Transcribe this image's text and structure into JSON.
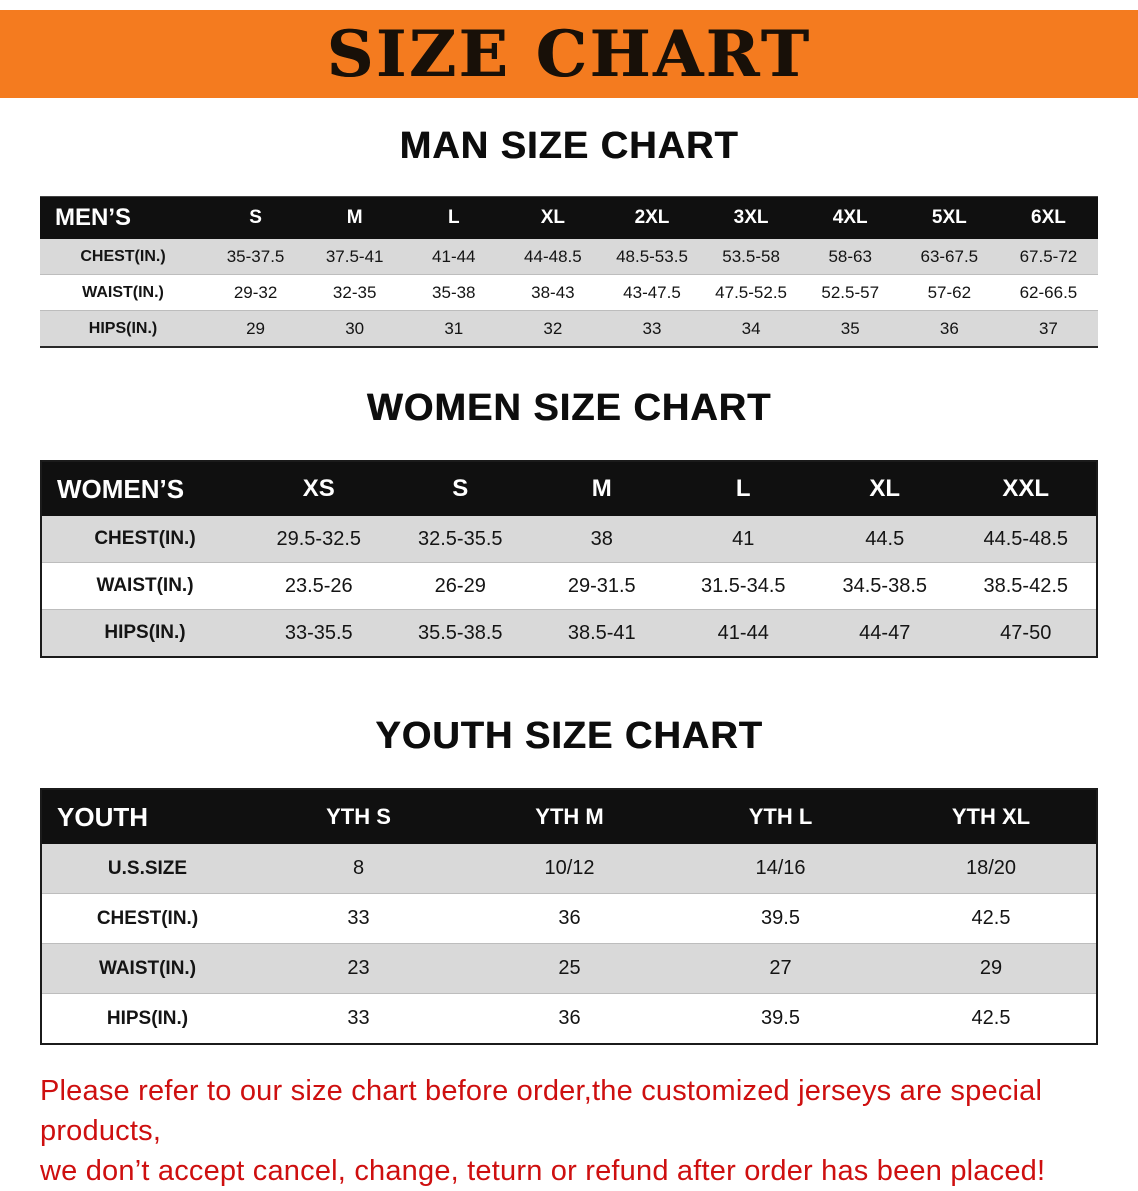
{
  "banner": {
    "title": "SIZE CHART",
    "bg_color": "#F47B1F",
    "text_color": "#181008"
  },
  "sections": {
    "men": {
      "heading": "MAN SIZE CHART",
      "table": {
        "header": [
          "MEN’S",
          "S",
          "M",
          "L",
          "XL",
          "2XL",
          "3XL",
          "4XL",
          "5XL",
          "6XL"
        ],
        "rows": [
          [
            "CHEST(IN.)",
            "35-37.5",
            "37.5-41",
            "41-44",
            "44-48.5",
            "48.5-53.5",
            "53.5-58",
            "58-63",
            "63-67.5",
            "67.5-72"
          ],
          [
            "WAIST(IN.)",
            "29-32",
            "32-35",
            "35-38",
            "38-43",
            "43-47.5",
            "47.5-52.5",
            "52.5-57",
            "57-62",
            "62-66.5"
          ],
          [
            "HIPS(IN.)",
            "29",
            "30",
            "31",
            "32",
            "33",
            "34",
            "35",
            "36",
            "37"
          ]
        ]
      }
    },
    "women": {
      "heading": "WOMEN SIZE CHART",
      "table": {
        "header": [
          "WOMEN’S",
          "XS",
          "S",
          "M",
          "L",
          "XL",
          "XXL"
        ],
        "rows": [
          [
            "CHEST(IN.)",
            "29.5-32.5",
            "32.5-35.5",
            "38",
            "41",
            "44.5",
            "44.5-48.5"
          ],
          [
            "WAIST(IN.)",
            "23.5-26",
            "26-29",
            "29-31.5",
            "31.5-34.5",
            "34.5-38.5",
            "38.5-42.5"
          ],
          [
            "HIPS(IN.)",
            "33-35.5",
            "35.5-38.5",
            "38.5-41",
            "41-44",
            "44-47",
            "47-50"
          ]
        ]
      }
    },
    "youth": {
      "heading": "YOUTH SIZE CHART",
      "table": {
        "header": [
          "YOUTH",
          "YTH S",
          "YTH M",
          "YTH L",
          "YTH XL"
        ],
        "rows": [
          [
            "U.S.SIZE",
            "8",
            "10/12",
            "14/16",
            "18/20"
          ],
          [
            "CHEST(IN.)",
            "33",
            "36",
            "39.5",
            "42.5"
          ],
          [
            "WAIST(IN.)",
            "23",
            "25",
            "27",
            "29"
          ],
          [
            "HIPS(IN.)",
            "33",
            "36",
            "39.5",
            "42.5"
          ]
        ]
      }
    }
  },
  "footer": {
    "text_color": "#CE0F0F",
    "lines": [
      "Please refer to our size chart before order,the customized jerseys are special products,",
      "we don’t accept cancel, change, teturn or refund after order has been placed!"
    ]
  }
}
